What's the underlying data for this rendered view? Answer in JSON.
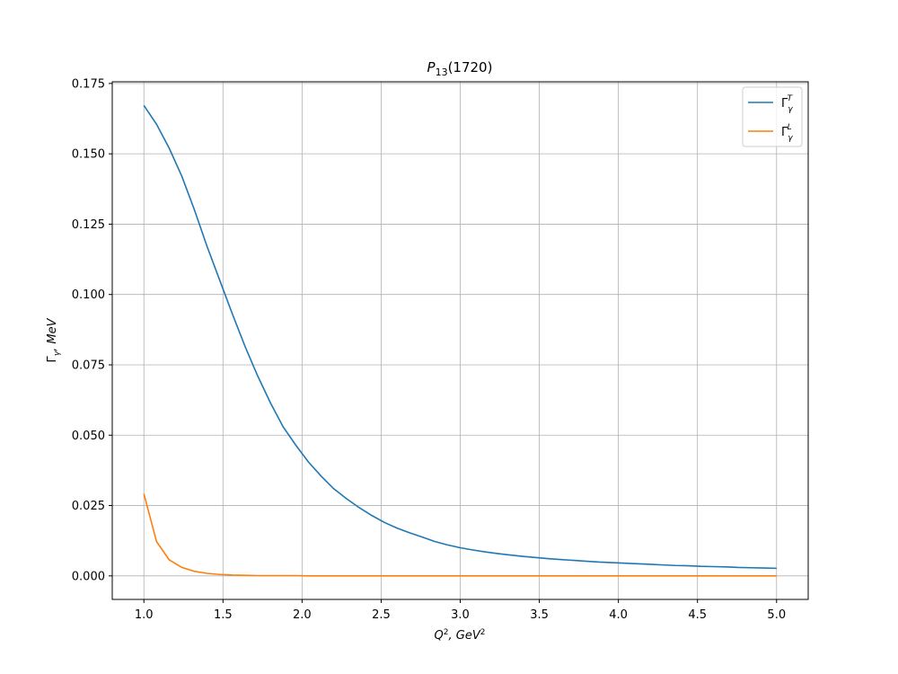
{
  "chart_data": {
    "type": "line",
    "title": [
      "P",
      "13",
      "(1720)"
    ],
    "x_label": [
      "Q",
      "2",
      ", GeV",
      "2"
    ],
    "y_label": [
      "Γ",
      "γ",
      ", MeV"
    ],
    "x": [
      1.0,
      1.08,
      1.16,
      1.24,
      1.32,
      1.4,
      1.48,
      1.56,
      1.64,
      1.72,
      1.8,
      1.88,
      1.96,
      2.04,
      2.12,
      2.2,
      2.28,
      2.36,
      2.44,
      2.52,
      2.6,
      2.68,
      2.76,
      2.84,
      2.92,
      3.0,
      3.08,
      3.16,
      3.24,
      3.32,
      3.4,
      3.48,
      3.56,
      3.64,
      3.72,
      3.8,
      3.88,
      3.96,
      4.04,
      4.12,
      4.2,
      4.28,
      4.36,
      4.44,
      4.52,
      4.6,
      4.68,
      4.76,
      4.84,
      4.92,
      5.0
    ],
    "series": [
      {
        "name": [
          "Γ",
          "γ",
          "T"
        ],
        "color": "#1f77b4",
        "values": [
          0.1672,
          0.1605,
          0.152,
          0.142,
          0.13,
          0.117,
          0.105,
          0.093,
          0.0815,
          0.071,
          0.0615,
          0.053,
          0.0465,
          0.0405,
          0.0355,
          0.031,
          0.0275,
          0.0243,
          0.0215,
          0.019,
          0.017,
          0.0153,
          0.0138,
          0.0122,
          0.011,
          0.01,
          0.0092,
          0.0085,
          0.0079,
          0.0074,
          0.0069,
          0.0065,
          0.0061,
          0.0058,
          0.0055,
          0.0052,
          0.0049,
          0.0047,
          0.0045,
          0.0043,
          0.0041,
          0.0039,
          0.0037,
          0.0036,
          0.0034,
          0.0033,
          0.0032,
          0.003,
          0.0029,
          0.0028,
          0.0027
        ]
      },
      {
        "name": [
          "Γ",
          "γ",
          "L"
        ],
        "color": "#ff7f0e",
        "values": [
          0.0292,
          0.0122,
          0.0057,
          0.003,
          0.0016,
          0.0009,
          0.0005,
          0.0003,
          0.0002,
          0.0001,
          0.0001,
          0.0001,
          0.0001,
          0,
          0,
          0,
          0,
          0,
          0,
          0,
          0,
          0,
          0,
          0,
          0,
          0,
          0,
          0,
          0,
          0,
          0,
          0,
          0,
          0,
          0,
          0,
          0,
          0,
          0,
          0,
          0,
          0,
          0,
          0,
          0,
          0,
          0,
          0,
          0,
          0,
          0
        ]
      }
    ],
    "xlim": [
      0.8,
      5.2
    ],
    "ylim": [
      -0.00836,
      0.1756
    ],
    "xticks": [
      {
        "value": 1,
        "label": "1.0"
      },
      1.5,
      {
        "value": 2,
        "label": "2.0"
      },
      2.5,
      {
        "value": 3,
        "label": "3.0"
      },
      3.5,
      {
        "value": 4,
        "label": "4.0"
      },
      4.5,
      {
        "value": 5,
        "label": "5.0"
      }
    ],
    "yticks": [
      {
        "value": 0,
        "label": "0.000"
      },
      0.025,
      {
        "value": 0.05,
        "label": "0.050"
      },
      0.075,
      {
        "value": 0.1,
        "label": "0.100"
      },
      0.125,
      {
        "value": 0.15,
        "label": "0.150"
      },
      0.175
    ],
    "grid": true,
    "legend": "upper right"
  }
}
